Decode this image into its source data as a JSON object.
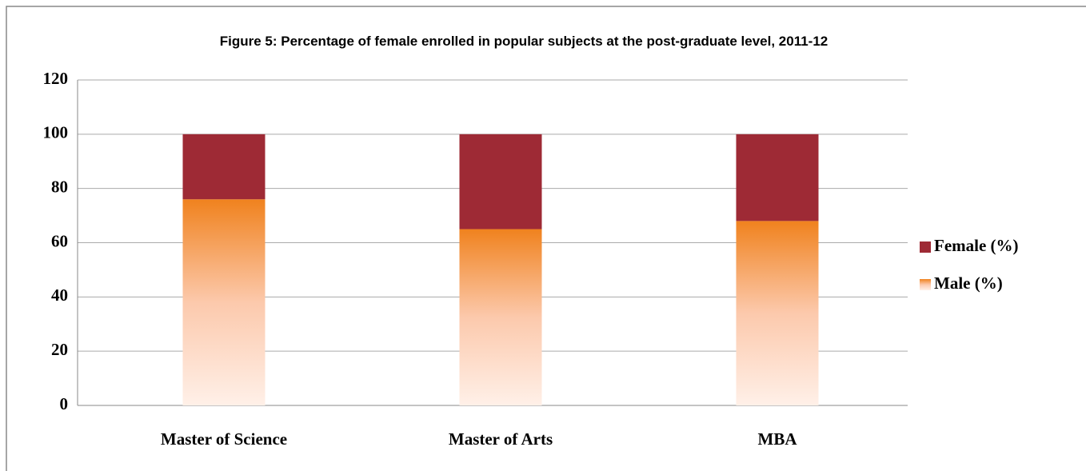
{
  "chart_data": {
    "type": "stacked_bar",
    "title": "Figure 5: Percentage of female enrolled in popular subjects at the post-graduate level, 2011-12",
    "categories": [
      "Master of Science",
      "Master of Arts",
      "MBA"
    ],
    "series": [
      {
        "name": "Male (%)",
        "color": "#f0821e",
        "values": [
          76,
          65,
          68
        ]
      },
      {
        "name": "Female (%)",
        "color": "#9e2a35",
        "values": [
          24,
          35,
          32
        ]
      }
    ],
    "ylim": [
      0,
      120
    ],
    "yticks": [
      0,
      20,
      40,
      60,
      80,
      100,
      120
    ],
    "grid": true,
    "legend": "right"
  }
}
